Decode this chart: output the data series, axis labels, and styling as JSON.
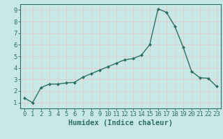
{
  "x": [
    0,
    1,
    2,
    3,
    4,
    5,
    6,
    7,
    8,
    9,
    10,
    11,
    12,
    13,
    14,
    15,
    16,
    17,
    18,
    19,
    20,
    21,
    22,
    23
  ],
  "y": [
    1.4,
    1.0,
    2.3,
    2.6,
    2.6,
    2.7,
    2.75,
    3.2,
    3.5,
    3.8,
    4.1,
    4.4,
    4.7,
    4.8,
    5.1,
    6.0,
    9.1,
    8.8,
    7.6,
    5.8,
    3.7,
    3.15,
    3.1,
    2.4
  ],
  "line_color": "#2d7060",
  "marker": "D",
  "marker_size": 2.0,
  "bg_color": "#c8e8e8",
  "grid_color": "#f0f0f0",
  "xlabel": "Humidex (Indice chaleur)",
  "xlim": [
    -0.5,
    23.5
  ],
  "ylim": [
    0.5,
    9.5
  ],
  "xticks": [
    0,
    1,
    2,
    3,
    4,
    5,
    6,
    7,
    8,
    9,
    10,
    11,
    12,
    13,
    14,
    15,
    16,
    17,
    18,
    19,
    20,
    21,
    22,
    23
  ],
  "yticks": [
    1,
    2,
    3,
    4,
    5,
    6,
    7,
    8,
    9
  ],
  "xlabel_fontsize": 7.5,
  "tick_fontsize": 6.5,
  "axis_color": "#2d7060"
}
